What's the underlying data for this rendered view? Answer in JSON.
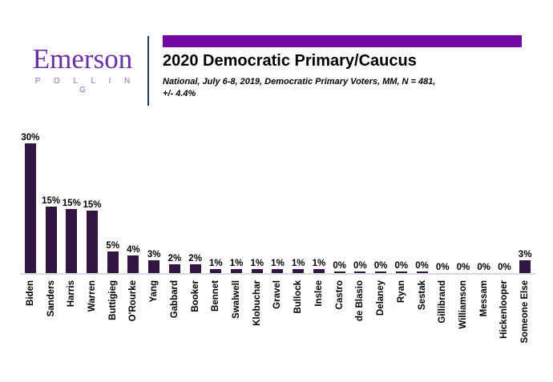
{
  "logo": {
    "name": "Emerson",
    "tagline": "P O L L I N G",
    "name_color": "#6a2fa8",
    "tagline_color": "#9366c4"
  },
  "header": {
    "title": "2020 Democratic Primary/Caucus",
    "subtitle_line1": "National, July 6-8, 2019, Democratic Primary Voters, MM, N = 481,",
    "subtitle_line2": "+/- 4.4%",
    "accent_color": "#7209a5",
    "divider_color": "#1f3864"
  },
  "chart_data": {
    "type": "bar",
    "title": "2020 Democratic Primary/Caucus",
    "categories": [
      "Biden",
      "Sanders",
      "Harris",
      "Warren",
      "Buttigieg",
      "O'Rourke",
      "Yang",
      "Gabbard",
      "Booker",
      "Bennet",
      "Swalwell",
      "Klobuchar",
      "Gravel",
      "Bullock",
      "Inslee",
      "Castro",
      "de Blasio",
      "Delaney",
      "Ryan",
      "Sestak",
      "Gillibrand",
      "Williamson",
      "Messam",
      "Hickenlooper",
      "Someone Else"
    ],
    "values": [
      30,
      15,
      15,
      15,
      5,
      4,
      3,
      2,
      2,
      1,
      1,
      1,
      1,
      1,
      1,
      0,
      0,
      0,
      0,
      0,
      0,
      0,
      0,
      0,
      3
    ],
    "value_labels": [
      "30%",
      "15%",
      "15%",
      "15%",
      "5%",
      "4%",
      "3%",
      "2%",
      "2%",
      "1%",
      "1%",
      "1%",
      "1%",
      "1%",
      "1%",
      "0%",
      "0%",
      "0%",
      "0%",
      "0%",
      "0%",
      "0%",
      "0%",
      "0%",
      "3%"
    ],
    "bar_heights_est_pct": [
      30,
      15.4,
      14.9,
      14.4,
      5,
      4,
      3,
      2,
      2,
      1,
      1,
      1,
      1,
      1,
      1,
      0.4,
      0.4,
      0.4,
      0.4,
      0.4,
      0,
      0,
      0,
      0,
      3
    ],
    "bar_color": "#331543",
    "axis_color": "#d9d9d9",
    "xlabel": "",
    "ylabel": "",
    "ylim": [
      0,
      33
    ],
    "gridlines": false,
    "legend": "none",
    "data_labels": "above bars, bold",
    "category_label_rotation_deg": 90
  }
}
